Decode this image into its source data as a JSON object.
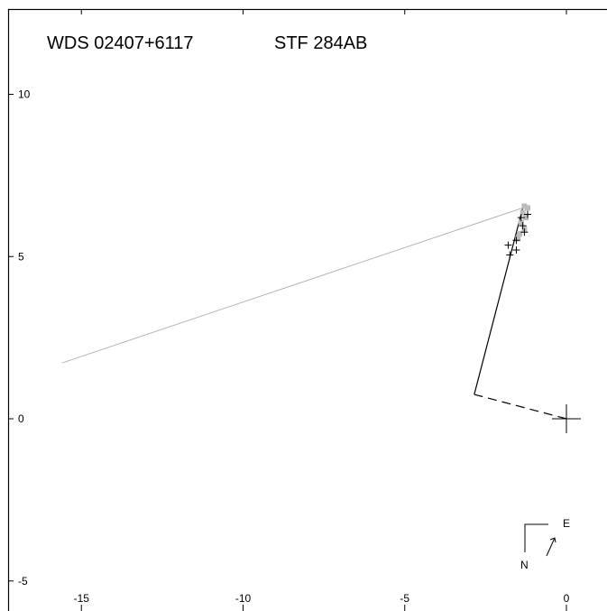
{
  "chart_data": {
    "type": "scatter",
    "title_left": "WDS 02407+6117",
    "title_right": "STF 284AB",
    "xlim": [
      -16.5,
      1.5
    ],
    "ylim": [
      -5.4,
      12.6
    ],
    "x_ticks": [
      {
        "value": -15,
        "label": "-15"
      },
      {
        "value": -10,
        "label": "-10"
      },
      {
        "value": -5,
        "label": "-5"
      },
      {
        "value": 0,
        "label": "0"
      }
    ],
    "y_ticks": [
      {
        "value": 10,
        "label": "10"
      },
      {
        "value": 5,
        "label": "5"
      },
      {
        "value": 0,
        "label": "0"
      },
      {
        "value": -5,
        "label": "-5"
      }
    ],
    "primary": {
      "x": 0,
      "y": 0
    },
    "fit_line": [
      {
        "x": -15.6,
        "y": 1.72
      },
      {
        "x": -1.2,
        "y": 6.55
      }
    ],
    "orbit_arc": [
      {
        "x": -2.85,
        "y": 0.75
      },
      {
        "x": -1.35,
        "y": 6.5
      }
    ],
    "periastron_line": [
      {
        "x": 0,
        "y": 0
      },
      {
        "x": -2.85,
        "y": 0.75
      }
    ],
    "gray_marks": [
      {
        "x": -1.3,
        "y": 6.55
      },
      {
        "x": -1.2,
        "y": 6.5
      },
      {
        "x": -1.35,
        "y": 6.35
      },
      {
        "x": -1.25,
        "y": 6.2
      },
      {
        "x": -1.4,
        "y": 6.05
      },
      {
        "x": -1.3,
        "y": 5.85
      },
      {
        "x": -1.45,
        "y": 5.7
      },
      {
        "x": -1.5,
        "y": 5.55
      }
    ],
    "plus_marks": [
      {
        "x": -1.2,
        "y": 6.3
      },
      {
        "x": -1.4,
        "y": 6.2
      },
      {
        "x": -1.35,
        "y": 5.95
      },
      {
        "x": -1.3,
        "y": 5.75
      },
      {
        "x": -1.55,
        "y": 5.5
      },
      {
        "x": -1.8,
        "y": 5.35
      },
      {
        "x": -1.55,
        "y": 5.2
      },
      {
        "x": -1.75,
        "y": 5.05
      }
    ],
    "compass": {
      "east_label": "E",
      "north_label": "N"
    }
  }
}
